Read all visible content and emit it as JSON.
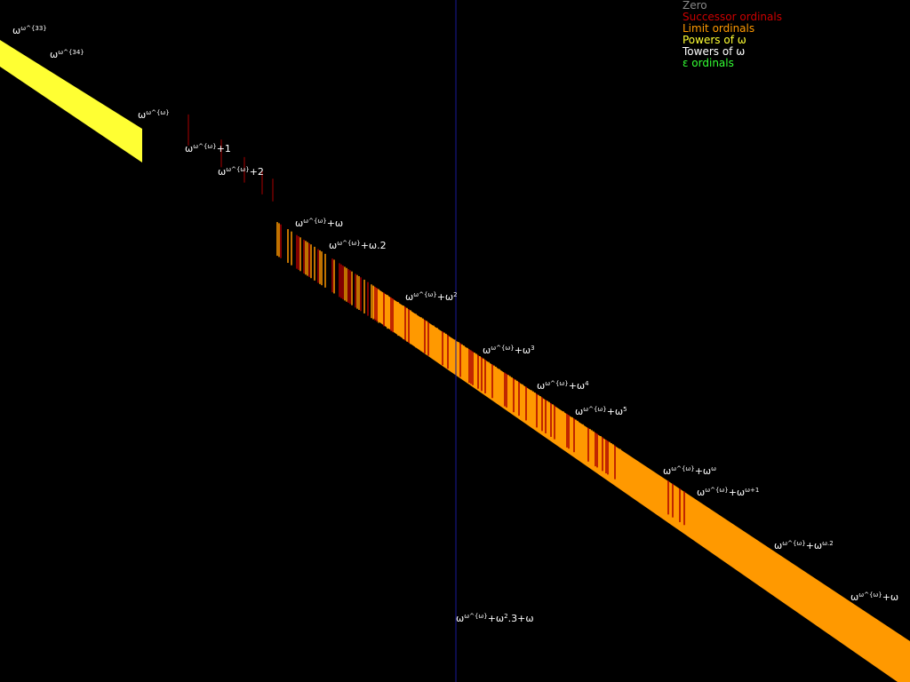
{
  "legend": [
    "Zero",
    "Successor ordinals",
    "Limit ordinals",
    "Powers of ω",
    "Towers of ω",
    "ε ordinals"
  ],
  "labels": [
    [
      {
        "t": "ω"
      },
      {
        "t": "ω^{33}",
        "sup": true
      }
    ],
    [
      {
        "t": "ω"
      },
      {
        "t": "ω^{34}",
        "sup": true
      }
    ],
    [
      {
        "t": "ω"
      },
      {
        "t": "ω^{ω}",
        "sup": true
      }
    ],
    [
      {
        "t": "ω"
      },
      {
        "t": "ω^{ω}",
        "sup": true
      },
      {
        "t": "+1"
      }
    ],
    [
      {
        "t": "ω"
      },
      {
        "t": "ω^{ω}",
        "sup": true
      },
      {
        "t": "+2"
      }
    ],
    [
      {
        "t": "ω"
      },
      {
        "t": "ω^{ω}",
        "sup": true
      },
      {
        "t": "+ω"
      }
    ],
    [
      {
        "t": "ω"
      },
      {
        "t": "ω^{ω}",
        "sup": true
      },
      {
        "t": "+ω.2"
      }
    ],
    [
      {
        "t": "ω"
      },
      {
        "t": "ω^{ω}",
        "sup": true
      },
      {
        "t": "+ω"
      },
      {
        "t": "2",
        "sup": true
      }
    ],
    [
      {
        "t": "ω"
      },
      {
        "t": "ω^{ω}",
        "sup": true
      },
      {
        "t": "+ω"
      },
      {
        "t": "3",
        "sup": true
      }
    ],
    [
      {
        "t": "ω"
      },
      {
        "t": "ω^{ω}",
        "sup": true
      },
      {
        "t": "+ω"
      },
      {
        "t": "4",
        "sup": true
      }
    ],
    [
      {
        "t": "ω"
      },
      {
        "t": "ω^{ω}",
        "sup": true
      },
      {
        "t": "+ω"
      },
      {
        "t": "5",
        "sup": true
      }
    ],
    [
      {
        "t": "ω"
      },
      {
        "t": "ω^{ω}",
        "sup": true
      },
      {
        "t": "+ω"
      },
      {
        "t": "ω",
        "sup": true
      }
    ],
    [
      {
        "t": "ω"
      },
      {
        "t": "ω^{ω}",
        "sup": true
      },
      {
        "t": "+ω"
      },
      {
        "t": "ω+1",
        "sup": true
      }
    ],
    [
      {
        "t": "ω"
      },
      {
        "t": "ω^{ω}",
        "sup": true
      },
      {
        "t": "+ω"
      },
      {
        "t": "ω.2",
        "sup": true
      }
    ],
    [
      {
        "t": "ω"
      },
      {
        "t": "ω^{ω}",
        "sup": true
      },
      {
        "t": "+ω"
      }
    ],
    [
      {
        "t": "ω"
      },
      {
        "t": "ω^{ω}",
        "sup": true
      },
      {
        "t": "+ω"
      },
      {
        "t": "2",
        "sup": true
      },
      {
        "t": ".3+ω"
      }
    ]
  ]
}
